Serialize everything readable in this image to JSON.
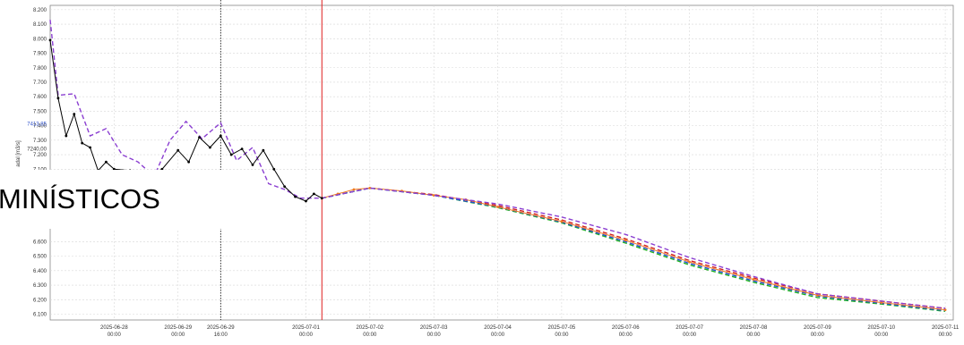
{
  "chart_data": {
    "type": "line",
    "ylabel": "adal [m3/s]",
    "ylim": [
      6060,
      8230
    ],
    "xlim": [
      "2025-06-27 00:00",
      "2025-07-11 03:00"
    ],
    "grid": true,
    "legend": "none",
    "y_ticks": [
      6100,
      6200,
      6300,
      6400,
      6500,
      6600,
      7100,
      7200,
      7300,
      7400,
      7500,
      7600,
      7700,
      7800,
      7900,
      8000,
      8100,
      8200
    ],
    "y_tick_labels": [
      "6.100",
      "6.200",
      "6.300",
      "6.400",
      "6.500",
      "6.600",
      "7.100",
      "7.200",
      "7.300",
      "7.400",
      "7.500",
      "7.600",
      "7.700",
      "7.800",
      "7.900",
      "8.000",
      "8.100",
      "8.200"
    ],
    "marker_labels": [
      {
        "value": 7413.85,
        "text": "7413,85",
        "color": "#3355cc"
      },
      {
        "value": 7240.0,
        "text": "7240,00",
        "color": "#333333"
      }
    ],
    "x_ticks": [
      {
        "x": "2025-06-28 00:00",
        "date": "2025-06-28",
        "time": "00:00"
      },
      {
        "x": "2025-06-29 00:00",
        "date": "2025-06-29",
        "time": "00:00"
      },
      {
        "x": "2025-06-29 16:00",
        "date": "2025-06-29",
        "time": "16:00"
      },
      {
        "x": "2025-07-01 00:00",
        "date": "2025-07-01",
        "time": "00:00"
      },
      {
        "x": "2025-07-02 00:00",
        "date": "2025-07-02",
        "time": "00:00"
      },
      {
        "x": "2025-07-03 00:00",
        "date": "2025-07-03",
        "time": "00:00"
      },
      {
        "x": "2025-07-04 00:00",
        "date": "2025-07-04",
        "time": "00:00"
      },
      {
        "x": "2025-07-05 00:00",
        "date": "2025-07-05",
        "time": "00:00"
      },
      {
        "x": "2025-07-06 00:00",
        "date": "2025-07-06",
        "time": "00:00"
      },
      {
        "x": "2025-07-07 00:00",
        "date": "2025-07-07",
        "time": "00:00"
      },
      {
        "x": "2025-07-08 00:00",
        "date": "2025-07-08",
        "time": "00:00"
      },
      {
        "x": "2025-07-09 00:00",
        "date": "2025-07-09",
        "time": "00:00"
      },
      {
        "x": "2025-07-10 00:00",
        "date": "2025-07-10",
        "time": "00:00"
      },
      {
        "x": "2025-07-11 00:00",
        "date": "2025-07-11",
        "time": "00:00"
      }
    ],
    "vlines": [
      {
        "x": "2025-06-29 16:00",
        "color": "#000000",
        "style": "dotted"
      },
      {
        "x": "2025-07-01 06:00",
        "color": "#e02020",
        "style": "solid"
      }
    ],
    "series": [
      {
        "color": "#000000",
        "style": "solid-markers",
        "points": [
          [
            "2025-06-27 00:00",
            7990
          ],
          [
            "2025-06-27 03:00",
            7590
          ],
          [
            "2025-06-27 06:00",
            7330
          ],
          [
            "2025-06-27 09:00",
            7480
          ],
          [
            "2025-06-27 12:00",
            7280
          ],
          [
            "2025-06-27 15:00",
            7250
          ],
          [
            "2025-06-27 18:00",
            7090
          ],
          [
            "2025-06-27 21:00",
            7150
          ],
          [
            "2025-06-28 00:00",
            7100
          ],
          [
            "2025-06-28 06:00",
            7090
          ],
          [
            "2025-06-28 12:00",
            7050
          ],
          [
            "2025-06-28 18:00",
            7100
          ],
          [
            "2025-06-29 00:00",
            7230
          ],
          [
            "2025-06-29 04:00",
            7150
          ],
          [
            "2025-06-29 08:00",
            7320
          ],
          [
            "2025-06-29 12:00",
            7250
          ],
          [
            "2025-06-29 16:00",
            7330
          ],
          [
            "2025-06-29 20:00",
            7200
          ],
          [
            "2025-06-30 00:00",
            7240
          ],
          [
            "2025-06-30 04:00",
            7130
          ],
          [
            "2025-06-30 08:00",
            7230
          ],
          [
            "2025-06-30 12:00",
            7100
          ],
          [
            "2025-06-30 16:00",
            6980
          ],
          [
            "2025-06-30 20:00",
            6910
          ],
          [
            "2025-07-01 00:00",
            6880
          ],
          [
            "2025-07-01 03:00",
            6930
          ],
          [
            "2025-07-01 06:00",
            6900
          ]
        ]
      },
      {
        "color": "#8b3fd1",
        "style": "dashed",
        "points": [
          [
            "2025-06-27 00:00",
            8130
          ],
          [
            "2025-06-27 03:00",
            7610
          ],
          [
            "2025-06-27 09:00",
            7620
          ],
          [
            "2025-06-27 15:00",
            7330
          ],
          [
            "2025-06-27 21:00",
            7380
          ],
          [
            "2025-06-28 03:00",
            7200
          ],
          [
            "2025-06-28 09:00",
            7150
          ],
          [
            "2025-06-28 15:00",
            7050
          ],
          [
            "2025-06-28 21:00",
            7300
          ],
          [
            "2025-06-29 03:00",
            7430
          ],
          [
            "2025-06-29 09:00",
            7310
          ],
          [
            "2025-06-29 16:00",
            7420
          ],
          [
            "2025-06-29 22:00",
            7160
          ],
          [
            "2025-06-30 04:00",
            7250
          ],
          [
            "2025-06-30 10:00",
            7000
          ],
          [
            "2025-06-30 16:00",
            6960
          ],
          [
            "2025-06-30 22:00",
            6900
          ],
          [
            "2025-07-01 06:00",
            6900
          ],
          [
            "2025-07-02 00:00",
            6970
          ],
          [
            "2025-07-03 00:00",
            6920
          ],
          [
            "2025-07-04 00:00",
            6860
          ],
          [
            "2025-07-05 00:00",
            6770
          ],
          [
            "2025-07-06 00:00",
            6650
          ],
          [
            "2025-07-07 00:00",
            6490
          ],
          [
            "2025-07-08 00:00",
            6360
          ],
          [
            "2025-07-09 00:00",
            6240
          ],
          [
            "2025-07-10 00:00",
            6190
          ],
          [
            "2025-07-11 00:00",
            6140
          ]
        ]
      },
      {
        "color": "#f07a20",
        "style": "solid-markers",
        "points": [
          [
            "2025-07-01 06:00",
            6900
          ],
          [
            "2025-07-01 12:00",
            6930
          ],
          [
            "2025-07-01 18:00",
            6960
          ],
          [
            "2025-07-02 00:00",
            6970
          ],
          [
            "2025-07-02 12:00",
            6950
          ],
          [
            "2025-07-03 00:00",
            6920
          ],
          [
            "2025-07-03 12:00",
            6890
          ],
          [
            "2025-07-04 00:00",
            6840
          ],
          [
            "2025-07-05 00:00",
            6740
          ],
          [
            "2025-07-06 00:00",
            6610
          ],
          [
            "2025-07-07 00:00",
            6460
          ],
          [
            "2025-07-08 00:00",
            6340
          ],
          [
            "2025-07-09 00:00",
            6230
          ],
          [
            "2025-07-10 00:00",
            6180
          ],
          [
            "2025-07-11 00:00",
            6130
          ]
        ]
      },
      {
        "color": "#1f4fd6",
        "style": "dashed",
        "points": [
          [
            "2025-07-01 06:00",
            6900
          ],
          [
            "2025-07-02 00:00",
            6970
          ],
          [
            "2025-07-03 00:00",
            6920
          ],
          [
            "2025-07-04 00:00",
            6840
          ],
          [
            "2025-07-05 00:00",
            6735
          ],
          [
            "2025-07-06 00:00",
            6600
          ],
          [
            "2025-07-07 00:00",
            6450
          ],
          [
            "2025-07-08 00:00",
            6330
          ],
          [
            "2025-07-09 00:00",
            6225
          ],
          [
            "2025-07-10 00:00",
            6175
          ],
          [
            "2025-07-11 00:00",
            6125
          ]
        ]
      },
      {
        "color": "#20b020",
        "style": "dashed",
        "points": [
          [
            "2025-07-01 06:00",
            6900
          ],
          [
            "2025-07-02 00:00",
            6970
          ],
          [
            "2025-07-03 00:00",
            6920
          ],
          [
            "2025-07-04 00:00",
            6835
          ],
          [
            "2025-07-05 00:00",
            6730
          ],
          [
            "2025-07-06 00:00",
            6590
          ],
          [
            "2025-07-07 00:00",
            6440
          ],
          [
            "2025-07-08 00:00",
            6320
          ],
          [
            "2025-07-09 00:00",
            6215
          ],
          [
            "2025-07-10 00:00",
            6170
          ],
          [
            "2025-07-11 00:00",
            6120
          ]
        ]
      },
      {
        "color": "#d02020",
        "style": "dashed",
        "points": [
          [
            "2025-07-01 06:00",
            6900
          ],
          [
            "2025-07-02 00:00",
            6970
          ],
          [
            "2025-07-03 00:00",
            6925
          ],
          [
            "2025-07-04 00:00",
            6850
          ],
          [
            "2025-07-05 00:00",
            6750
          ],
          [
            "2025-07-06 00:00",
            6620
          ],
          [
            "2025-07-07 00:00",
            6470
          ],
          [
            "2025-07-08 00:00",
            6350
          ],
          [
            "2025-07-09 00:00",
            6240
          ],
          [
            "2025-07-10 00:00",
            6190
          ],
          [
            "2025-07-11 00:00",
            6140
          ]
        ]
      }
    ]
  },
  "overlay": {
    "banner_text": "MINÍSTICOS"
  }
}
